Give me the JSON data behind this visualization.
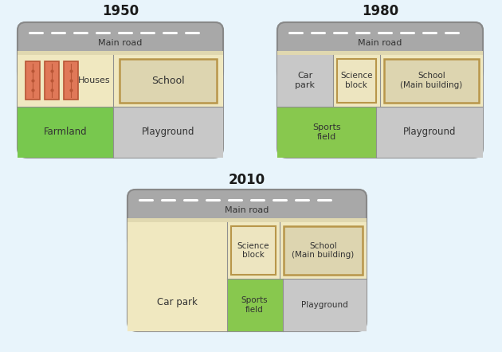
{
  "bg_color": "#e8f4fb",
  "title_1950": "1950",
  "title_1980": "1980",
  "title_2010": "2010",
  "road_color": "#a8a8a8",
  "farmland_color": "#78c84e",
  "playground_color": "#c8c8c8",
  "school_bg_color": "#ddd5b0",
  "school_border_color": "#b8964a",
  "houses_color": "#e07858",
  "houses_border_color": "#b85535",
  "sports_color": "#88c84e",
  "carpark_color": "#c8c8c8",
  "science_bg_color": "#ede5c0",
  "science_border_color": "#b8964a",
  "outer_bg_color": "#b8b8b8",
  "inner_bg": "#f0e8c0",
  "strip_color": "#e0d8b0"
}
